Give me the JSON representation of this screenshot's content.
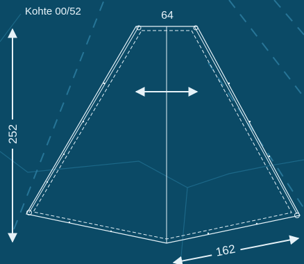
{
  "item_label": "Kohte 00/52",
  "dimensions": {
    "top_width": "64",
    "height": "252",
    "bottom_edge": "162"
  },
  "colors": {
    "background": "#0b4a66",
    "line": "#e6f2f8",
    "dashed_guides": "#2c7da0",
    "faint_guides": "#1e6b8c"
  }
}
